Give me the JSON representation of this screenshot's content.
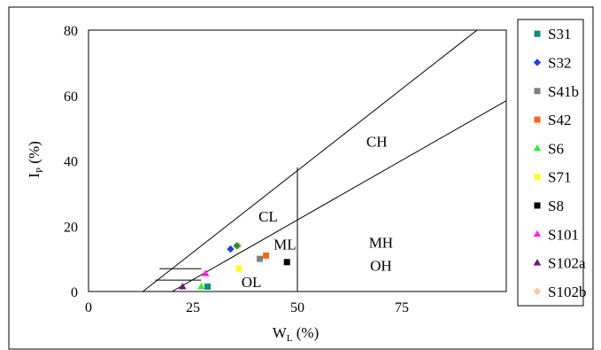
{
  "chart_data": {
    "type": "scatter",
    "title": "",
    "xlabel": {
      "main": "W",
      "sub": "L",
      "unit": " (%)"
    },
    "ylabel": {
      "main": "I",
      "sub": "P",
      "unit": " (%)"
    },
    "xlim": [
      0,
      100
    ],
    "ylim": [
      0,
      80
    ],
    "x_ticks": [
      "0",
      "25",
      "50",
      "75"
    ],
    "y_ticks": [
      "0",
      "20",
      "40",
      "60",
      "80"
    ],
    "grid": false,
    "legend_position": "right",
    "lines": [
      {
        "name": "upper-limit-line",
        "x": [
          13,
          93
        ],
        "y": [
          0,
          80
        ]
      },
      {
        "name": "a-line",
        "x": [
          20,
          100
        ],
        "y": [
          0,
          58.4
        ]
      },
      {
        "name": "wl50-line",
        "x": [
          50,
          50
        ],
        "y": [
          0,
          38
        ]
      },
      {
        "name": "hatch-line-1",
        "x": [
          16,
          27
        ],
        "y": [
          3.5,
          3.5
        ]
      },
      {
        "name": "hatch-line-2",
        "x": [
          17,
          27
        ],
        "y": [
          7,
          7
        ]
      }
    ],
    "zone_labels": [
      {
        "text": "CH",
        "x": 69,
        "y": 46
      },
      {
        "text": "CL",
        "x": 43,
        "y": 23
      },
      {
        "text": "ML",
        "x": 47,
        "y": 14.5
      },
      {
        "text": "MH",
        "x": 70,
        "y": 15
      },
      {
        "text": "OH",
        "x": 70,
        "y": 8
      },
      {
        "text": "OL",
        "x": 39,
        "y": 3
      }
    ],
    "series": [
      {
        "name": "S31",
        "marker": "square",
        "color": "#138a7d",
        "points": [
          [
            28.5,
            1.5
          ]
        ]
      },
      {
        "name": "S32",
        "marker": "diamond",
        "color": "#1f3fe0",
        "points": [
          [
            34,
            13
          ]
        ]
      },
      {
        "name": "S41b",
        "marker": "square",
        "color": "#808080",
        "points": [
          [
            41,
            10
          ]
        ]
      },
      {
        "name": "S42",
        "marker": "square",
        "color": "#ee6b1a",
        "points": [
          [
            42.5,
            11
          ]
        ]
      },
      {
        "name": "S6",
        "marker": "triangle",
        "color": "#33ee33",
        "points": [
          [
            27,
            1.5
          ]
        ]
      },
      {
        "name": "S71",
        "marker": "square",
        "color": "#ffff22",
        "points": [
          [
            36,
            7
          ]
        ]
      },
      {
        "name": "S8",
        "marker": "square",
        "color": "#000000",
        "points": [
          [
            47.5,
            9
          ]
        ]
      },
      {
        "name": "S101",
        "marker": "triangle",
        "color": "#ff22ee",
        "points": [
          [
            28,
            5.5
          ]
        ]
      },
      {
        "name": "S102a",
        "marker": "triangle",
        "color": "#6a1a78",
        "points": [
          [
            22.5,
            1.5
          ]
        ]
      },
      {
        "name": "S102b",
        "marker": "diamond",
        "color": "#f8c898",
        "points": [
          [
            36,
            14
          ]
        ]
      }
    ],
    "extra_points": [
      {
        "marker": "diamond",
        "color": "#2e8b2e",
        "x": 35.5,
        "y": 14
      }
    ]
  }
}
